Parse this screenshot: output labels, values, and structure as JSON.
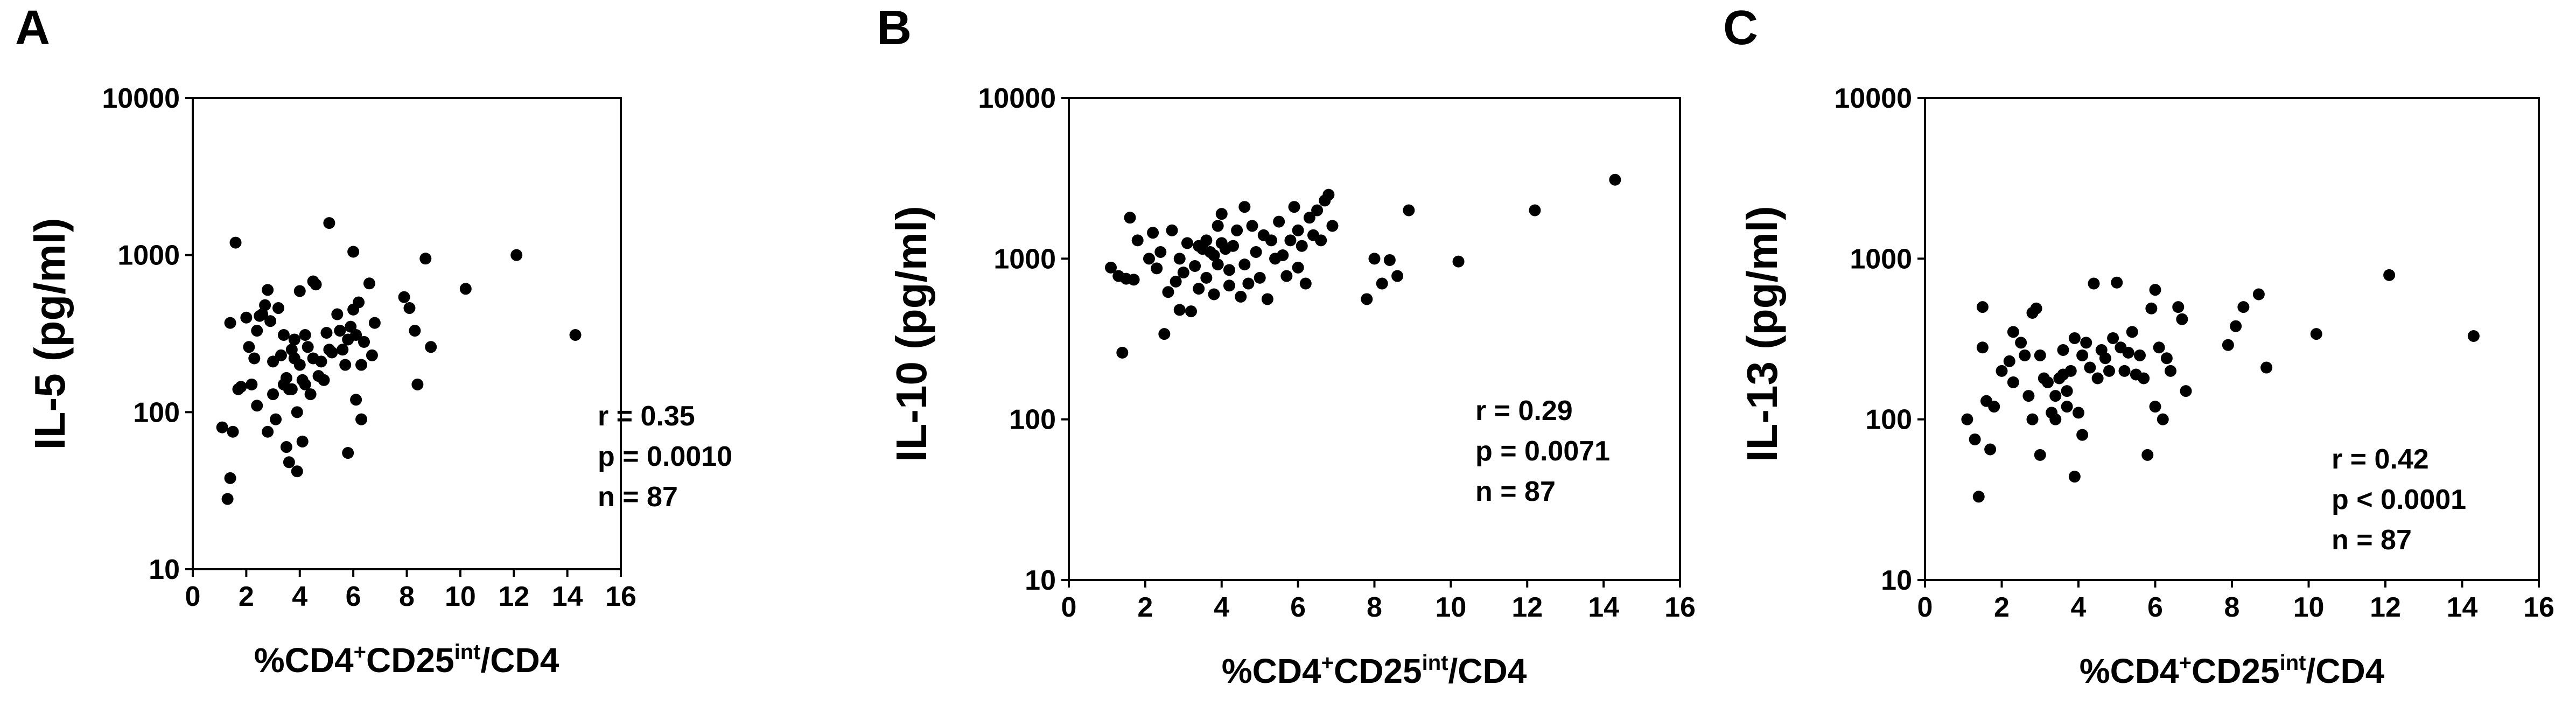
{
  "chart_data": [
    {
      "type": "scatter",
      "panel": "A",
      "ylabel": "IL-5 (pg/ml)",
      "xlabel": {
        "prefix": "%CD4",
        "sup1": "+",
        "mid": "CD25",
        "sup2": "int",
        "suffix": "/CD4"
      },
      "xlim": [
        0,
        16
      ],
      "ylim": [
        10,
        10000
      ],
      "yscale": "log",
      "x_ticks": [
        0,
        2,
        4,
        6,
        8,
        10,
        12,
        14,
        16
      ],
      "y_ticks": [
        10,
        100,
        1000,
        10000
      ],
      "stats": [
        "r = 0.35",
        "p = 0.0010",
        "n = 87"
      ],
      "points": [
        [
          1.1,
          80
        ],
        [
          1.3,
          28
        ],
        [
          1.4,
          38
        ],
        [
          1.4,
          370
        ],
        [
          1.5,
          75
        ],
        [
          1.6,
          1200
        ],
        [
          1.7,
          140
        ],
        [
          1.8,
          145
        ],
        [
          2.0,
          400
        ],
        [
          2.1,
          260
        ],
        [
          2.2,
          150
        ],
        [
          2.3,
          220
        ],
        [
          2.4,
          330
        ],
        [
          2.4,
          110
        ],
        [
          2.5,
          410
        ],
        [
          2.6,
          420
        ],
        [
          2.7,
          480
        ],
        [
          2.8,
          600
        ],
        [
          2.8,
          75
        ],
        [
          2.9,
          380
        ],
        [
          3.0,
          210
        ],
        [
          3.0,
          130
        ],
        [
          3.1,
          90
        ],
        [
          3.2,
          460
        ],
        [
          3.3,
          230
        ],
        [
          3.4,
          310
        ],
        [
          3.4,
          150
        ],
        [
          3.5,
          60
        ],
        [
          3.5,
          165
        ],
        [
          3.6,
          140
        ],
        [
          3.6,
          48
        ],
        [
          3.7,
          140
        ],
        [
          3.7,
          250
        ],
        [
          3.8,
          290
        ],
        [
          3.8,
          220
        ],
        [
          3.9,
          100
        ],
        [
          3.9,
          42
        ],
        [
          4.0,
          590
        ],
        [
          4.0,
          200
        ],
        [
          4.1,
          160
        ],
        [
          4.1,
          65
        ],
        [
          4.2,
          310
        ],
        [
          4.2,
          150
        ],
        [
          4.3,
          260
        ],
        [
          4.4,
          130
        ],
        [
          4.5,
          680
        ],
        [
          4.5,
          220
        ],
        [
          4.6,
          650
        ],
        [
          4.7,
          170
        ],
        [
          4.8,
          210
        ],
        [
          4.9,
          160
        ],
        [
          5.0,
          320
        ],
        [
          5.1,
          1600
        ],
        [
          5.1,
          250
        ],
        [
          5.2,
          240
        ],
        [
          5.4,
          420
        ],
        [
          5.5,
          330
        ],
        [
          5.6,
          250
        ],
        [
          5.7,
          200
        ],
        [
          5.8,
          290
        ],
        [
          5.8,
          55
        ],
        [
          5.9,
          350
        ],
        [
          6.0,
          1050
        ],
        [
          6.0,
          450
        ],
        [
          6.1,
          310
        ],
        [
          6.1,
          120
        ],
        [
          6.2,
          500
        ],
        [
          6.3,
          200
        ],
        [
          6.3,
          90
        ],
        [
          6.4,
          280
        ],
        [
          6.6,
          660
        ],
        [
          6.7,
          230
        ],
        [
          6.8,
          370
        ],
        [
          7.9,
          540
        ],
        [
          8.1,
          460
        ],
        [
          8.3,
          330
        ],
        [
          8.4,
          150
        ],
        [
          8.7,
          950
        ],
        [
          8.9,
          260
        ],
        [
          10.2,
          610
        ],
        [
          12.1,
          1000
        ],
        [
          14.3,
          310
        ]
      ]
    },
    {
      "type": "scatter",
      "panel": "B",
      "ylabel": "IL-10 (pg/ml)",
      "xlabel": {
        "prefix": "%CD4",
        "sup1": "+",
        "mid": "CD25",
        "sup2": "int",
        "suffix": "/CD4"
      },
      "xlim": [
        0,
        16
      ],
      "ylim": [
        10,
        10000
      ],
      "yscale": "log",
      "x_ticks": [
        0,
        2,
        4,
        6,
        8,
        10,
        12,
        14,
        16
      ],
      "y_ticks": [
        10,
        100,
        1000,
        10000
      ],
      "stats": [
        "r = 0.29",
        "p = 0.0071",
        "n = 87"
      ],
      "points": [
        [
          1.1,
          880
        ],
        [
          1.3,
          780
        ],
        [
          1.4,
          260
        ],
        [
          1.5,
          750
        ],
        [
          1.6,
          1800
        ],
        [
          1.7,
          740
        ],
        [
          1.8,
          1300
        ],
        [
          2.1,
          1000
        ],
        [
          2.2,
          1450
        ],
        [
          2.3,
          870
        ],
        [
          2.4,
          1100
        ],
        [
          2.5,
          340
        ],
        [
          2.6,
          620
        ],
        [
          2.7,
          1500
        ],
        [
          2.8,
          720
        ],
        [
          2.9,
          1000
        ],
        [
          2.9,
          480
        ],
        [
          3.0,
          820
        ],
        [
          3.1,
          1250
        ],
        [
          3.2,
          470
        ],
        [
          3.3,
          900
        ],
        [
          3.4,
          1200
        ],
        [
          3.4,
          650
        ],
        [
          3.5,
          1150
        ],
        [
          3.6,
          760
        ],
        [
          3.6,
          1300
        ],
        [
          3.7,
          1100
        ],
        [
          3.8,
          1050
        ],
        [
          3.8,
          600
        ],
        [
          3.9,
          920
        ],
        [
          3.9,
          1600
        ],
        [
          4.0,
          1900
        ],
        [
          4.0,
          1250
        ],
        [
          4.1,
          1150
        ],
        [
          4.2,
          850
        ],
        [
          4.2,
          680
        ],
        [
          4.3,
          1200
        ],
        [
          4.4,
          1500
        ],
        [
          4.5,
          580
        ],
        [
          4.6,
          2100
        ],
        [
          4.6,
          920
        ],
        [
          4.7,
          700
        ],
        [
          4.8,
          1600
        ],
        [
          4.9,
          1100
        ],
        [
          5.0,
          760
        ],
        [
          5.1,
          1400
        ],
        [
          5.2,
          560
        ],
        [
          5.3,
          1300
        ],
        [
          5.4,
          1000
        ],
        [
          5.5,
          1700
        ],
        [
          5.6,
          1050
        ],
        [
          5.7,
          780
        ],
        [
          5.8,
          1300
        ],
        [
          5.9,
          2100
        ],
        [
          6.0,
          1500
        ],
        [
          6.0,
          880
        ],
        [
          6.1,
          1200
        ],
        [
          6.2,
          700
        ],
        [
          6.3,
          1800
        ],
        [
          6.4,
          1400
        ],
        [
          6.5,
          2000
        ],
        [
          6.6,
          1300
        ],
        [
          6.7,
          2300
        ],
        [
          6.8,
          2500
        ],
        [
          6.9,
          1600
        ],
        [
          7.8,
          560
        ],
        [
          8.0,
          1000
        ],
        [
          8.2,
          700
        ],
        [
          8.4,
          980
        ],
        [
          8.6,
          780
        ],
        [
          8.9,
          2000
        ],
        [
          10.2,
          960
        ],
        [
          12.2,
          2000
        ],
        [
          14.3,
          3100
        ]
      ]
    },
    {
      "type": "scatter",
      "panel": "C",
      "ylabel": "IL-13 (pg/ml)",
      "xlabel": {
        "prefix": "%CD4",
        "sup1": "+",
        "mid": "CD25",
        "sup2": "int",
        "suffix": "/CD4"
      },
      "xlim": [
        0,
        16
      ],
      "ylim": [
        10,
        10000
      ],
      "yscale": "log",
      "x_ticks": [
        0,
        2,
        4,
        6,
        8,
        10,
        12,
        14,
        16
      ],
      "y_ticks": [
        10,
        100,
        1000,
        10000
      ],
      "stats": [
        "r = 0.42",
        "p < 0.0001",
        "n = 87"
      ],
      "points": [
        [
          1.1,
          100
        ],
        [
          1.3,
          75
        ],
        [
          1.4,
          33
        ],
        [
          1.5,
          280
        ],
        [
          1.5,
          500
        ],
        [
          1.6,
          130
        ],
        [
          1.7,
          65
        ],
        [
          1.8,
          120
        ],
        [
          2.0,
          200
        ],
        [
          2.2,
          230
        ],
        [
          2.3,
          170
        ],
        [
          2.3,
          350
        ],
        [
          2.5,
          300
        ],
        [
          2.6,
          250
        ],
        [
          2.7,
          140
        ],
        [
          2.8,
          100
        ],
        [
          2.8,
          460
        ],
        [
          2.9,
          490
        ],
        [
          3.0,
          250
        ],
        [
          3.0,
          60
        ],
        [
          3.1,
          180
        ],
        [
          3.2,
          170
        ],
        [
          3.3,
          110
        ],
        [
          3.4,
          100
        ],
        [
          3.4,
          140
        ],
        [
          3.5,
          180
        ],
        [
          3.6,
          270
        ],
        [
          3.6,
          190
        ],
        [
          3.7,
          150
        ],
        [
          3.7,
          120
        ],
        [
          3.8,
          200
        ],
        [
          3.9,
          320
        ],
        [
          3.9,
          44
        ],
        [
          4.0,
          110
        ],
        [
          4.1,
          250
        ],
        [
          4.1,
          80
        ],
        [
          4.2,
          300
        ],
        [
          4.3,
          210
        ],
        [
          4.4,
          700
        ],
        [
          4.5,
          180
        ],
        [
          4.6,
          270
        ],
        [
          4.7,
          240
        ],
        [
          4.8,
          200
        ],
        [
          4.9,
          320
        ],
        [
          5.0,
          710
        ],
        [
          5.1,
          280
        ],
        [
          5.2,
          200
        ],
        [
          5.3,
          260
        ],
        [
          5.4,
          350
        ],
        [
          5.5,
          190
        ],
        [
          5.6,
          250
        ],
        [
          5.7,
          180
        ],
        [
          5.8,
          60
        ],
        [
          5.9,
          490
        ],
        [
          6.0,
          640
        ],
        [
          6.0,
          120
        ],
        [
          6.1,
          280
        ],
        [
          6.2,
          100
        ],
        [
          6.3,
          240
        ],
        [
          6.4,
          200
        ],
        [
          6.6,
          500
        ],
        [
          6.7,
          420
        ],
        [
          6.8,
          150
        ],
        [
          7.9,
          290
        ],
        [
          8.1,
          380
        ],
        [
          8.3,
          500
        ],
        [
          8.7,
          600
        ],
        [
          8.9,
          210
        ],
        [
          10.2,
          340
        ],
        [
          12.1,
          790
        ],
        [
          14.3,
          330
        ]
      ]
    }
  ]
}
